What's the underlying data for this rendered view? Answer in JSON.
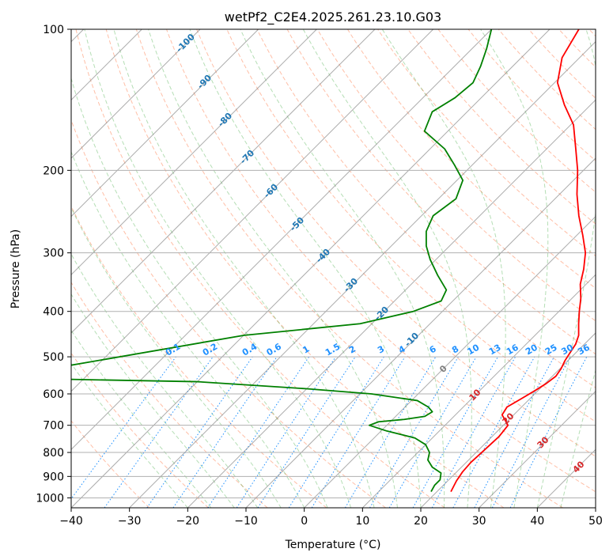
{
  "chart_data": {
    "type": "line",
    "title": "wetPf2_C2E4.2025.261.23.10.G03",
    "xlabel": "Temperature (°C)",
    "ylabel": "Pressure (hPa)",
    "xlim": [
      -40,
      50
    ],
    "ylim": [
      1050,
      100
    ],
    "y_scale": "log",
    "x_ticks": [
      -40,
      -30,
      -20,
      -10,
      0,
      10,
      20,
      30,
      40,
      50
    ],
    "x_tick_labels": [
      "−40",
      "−30",
      "−20",
      "−10",
      "0",
      "10",
      "20",
      "30",
      "40",
      "50"
    ],
    "y_ticks": [
      1000,
      900,
      800,
      700,
      600,
      500,
      400,
      300,
      200,
      100
    ],
    "y_tick_labels": [
      "1000",
      "900",
      "800",
      "700",
      "600",
      "500",
      "400",
      "300",
      "200",
      "100"
    ],
    "grid": true,
    "skew_deg": 45,
    "colors": {
      "temperature": "#ff0000",
      "dewpoint": "#008000",
      "dry_adiabat": "#ff7f50",
      "moist_adiabat": "#2ca02c",
      "mixing_ratio": "#1e90ff",
      "isotherm": "#808080",
      "dry_adiabat_label": "#1f77b4",
      "mixing_ratio_label": "#1e90ff",
      "moist_adiabat_label": "#d62728"
    },
    "series": [
      {
        "name": "temperature",
        "points": [
          [
            22.4,
            970
          ],
          [
            21.5,
            920
          ],
          [
            21.0,
            880
          ],
          [
            20.8,
            840
          ],
          [
            21.0,
            790
          ],
          [
            21.2,
            740
          ],
          [
            20.8,
            700
          ],
          [
            18.0,
            665
          ],
          [
            17.5,
            640
          ],
          [
            18.5,
            615
          ],
          [
            19.5,
            590
          ],
          [
            20.2,
            570
          ],
          [
            20.6,
            550
          ],
          [
            20.2,
            530
          ],
          [
            19.5,
            510
          ],
          [
            19.0,
            490
          ],
          [
            18.5,
            470
          ],
          [
            17.5,
            450
          ],
          [
            15.5,
            425
          ],
          [
            13.5,
            400
          ],
          [
            11.5,
            375
          ],
          [
            9.0,
            350
          ],
          [
            7.0,
            325
          ],
          [
            4.5,
            300
          ],
          [
            1.0,
            275
          ],
          [
            -3.0,
            250
          ],
          [
            -7.0,
            225
          ],
          [
            -11.0,
            200
          ],
          [
            -15.0,
            180
          ],
          [
            -19.5,
            160
          ],
          [
            -24.5,
            145
          ],
          [
            -29.5,
            130
          ],
          [
            -33.0,
            115
          ],
          [
            -35.0,
            100
          ]
        ]
      },
      {
        "name": "dewpoint",
        "points": [
          [
            19.0,
            970
          ],
          [
            18.5,
            940
          ],
          [
            18.5,
            915
          ],
          [
            17.5,
            885
          ],
          [
            15.0,
            860
          ],
          [
            13.0,
            830
          ],
          [
            12.0,
            800
          ],
          [
            10.0,
            770
          ],
          [
            7.0,
            745
          ],
          [
            1.0,
            720
          ],
          [
            -3.0,
            700
          ],
          [
            -2.0,
            688
          ],
          [
            2.0,
            680
          ],
          [
            5.0,
            670
          ],
          [
            5.5,
            655
          ],
          [
            4.0,
            640
          ],
          [
            1.0,
            620
          ],
          [
            -8.0,
            600
          ],
          [
            -20.0,
            585
          ],
          [
            -40.0,
            565
          ],
          [
            -75.0,
            555
          ],
          [
            -40.0,
            450
          ],
          [
            -22.0,
            425
          ],
          [
            -15.0,
            400
          ],
          [
            -12.0,
            380
          ],
          [
            -13.0,
            360
          ],
          [
            -17.0,
            335
          ],
          [
            -21.0,
            310
          ],
          [
            -24.0,
            290
          ],
          [
            -26.5,
            270
          ],
          [
            -28.0,
            250
          ],
          [
            -27.0,
            230
          ],
          [
            -29.0,
            210
          ],
          [
            -33.0,
            195
          ],
          [
            -37.5,
            180
          ],
          [
            -44.0,
            165
          ],
          [
            -46.0,
            150
          ],
          [
            -44.5,
            140
          ],
          [
            -44.0,
            130
          ],
          [
            -45.5,
            120
          ],
          [
            -47.5,
            110
          ],
          [
            -50.0,
            100
          ]
        ]
      }
    ],
    "dry_adiabat_labels": [
      "-100",
      "-90",
      "-80",
      "-70",
      "-60",
      "-50",
      "-40",
      "-30",
      "-20",
      "-10"
    ],
    "mixing_ratio_labels": [
      "0.1",
      "0.2",
      "0.4",
      "0.6",
      "1",
      "1.5",
      "2",
      "3",
      "4",
      "6",
      "8",
      "10",
      "13",
      "16",
      "20",
      "25",
      "30",
      "36"
    ],
    "moist_adiabat_labels": [
      "0",
      "10",
      "20",
      "30",
      "40"
    ]
  }
}
